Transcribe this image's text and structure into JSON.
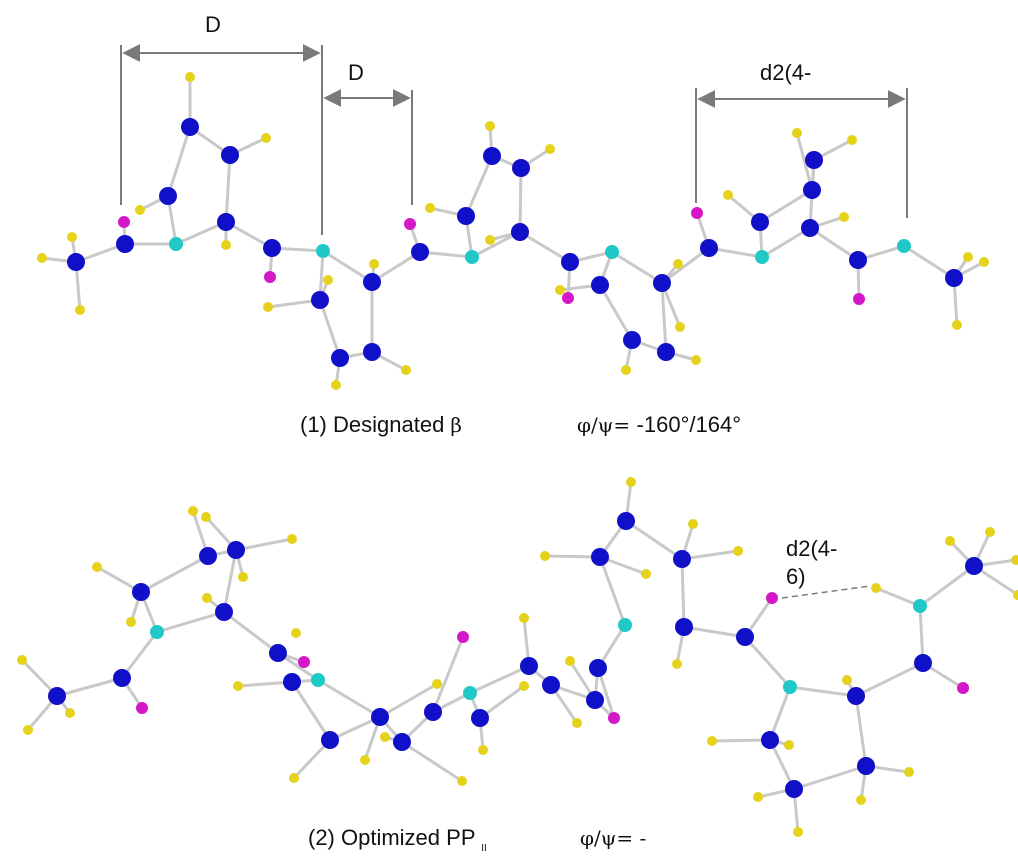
{
  "top_panel": {
    "measure_d_left": "D",
    "measure_d_mid": "D",
    "measure_d2": "d2(4-",
    "caption_prefix": "(1) Designated ",
    "caption_symbol": "β",
    "caption_angles_label": "φ/ψ= ",
    "caption_angles_value": "-160°/164°"
  },
  "bottom_panel": {
    "measure_d2_line1": "d2(4-",
    "measure_d2_line2": "6)",
    "caption_prefix": "(2) Optimized PP",
    "caption_subscript": "II",
    "caption_angles_label": "φ/ψ= -"
  },
  "colors": {
    "carbon": "#1010c8",
    "nitrogen": "#20c8c8",
    "oxygen": "#d418c8",
    "hydrogen": "#e6d21a",
    "bond": "#c9c9c9",
    "dimension_line": "#7a7a7a"
  }
}
